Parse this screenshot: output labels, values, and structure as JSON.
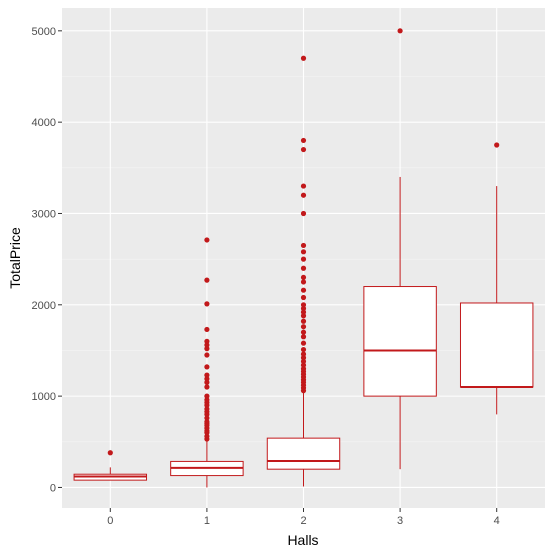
{
  "chart_data": {
    "type": "boxplot",
    "xlabel": "Halls",
    "ylabel": "TotalPrice",
    "ylim": [
      -225,
      5250
    ],
    "yticks": [
      0,
      1000,
      2000,
      3000,
      4000,
      5000
    ],
    "ytick_labels": [
      "0",
      "1000",
      "2000",
      "3000",
      "4000",
      "5000"
    ],
    "categories": [
      "0",
      "1",
      "2",
      "3",
      "4"
    ],
    "boxes": [
      {
        "category": "0",
        "q1": 80,
        "median": 120,
        "q3": 145,
        "whisker_low": 80,
        "whisker_high": 220
      },
      {
        "category": "1",
        "q1": 130,
        "median": 215,
        "q3": 285,
        "whisker_low": 0,
        "whisker_high": 520
      },
      {
        "category": "2",
        "q1": 200,
        "median": 290,
        "q3": 540,
        "whisker_low": 10,
        "whisker_high": 1050
      },
      {
        "category": "3",
        "q1": 1000,
        "median": 1500,
        "q3": 2200,
        "whisker_low": 200,
        "whisker_high": 3400
      },
      {
        "category": "4",
        "q1": 1100,
        "median": 1100,
        "q3": 2020,
        "whisker_low": 800,
        "whisker_high": 3300
      }
    ],
    "outliers": [
      {
        "category": "0",
        "values": [
          380
        ]
      },
      {
        "category": "1",
        "values": [
          530,
          560,
          600,
          620,
          650,
          680,
          700,
          720,
          760,
          800,
          830,
          860,
          900,
          930,
          960,
          1000,
          1100,
          1150,
          1190,
          1230,
          1320,
          1450,
          1520,
          1560,
          1600,
          1730,
          2010,
          2270,
          2710
        ]
      },
      {
        "category": "2",
        "values": [
          1060,
          1090,
          1120,
          1150,
          1180,
          1210,
          1240,
          1270,
          1300,
          1340,
          1380,
          1420,
          1460,
          1510,
          1580,
          1650,
          1700,
          1760,
          1820,
          1880,
          1920,
          1960,
          2000,
          2080,
          2160,
          2250,
          2300,
          2400,
          2500,
          2580,
          2650,
          3000,
          3200,
          3300,
          3700,
          3800,
          4700
        ]
      },
      {
        "category": "3",
        "values": [
          5000
        ]
      },
      {
        "category": "4",
        "values": [
          3750
        ]
      }
    ],
    "grid": true,
    "legend": "none",
    "colors": {
      "box_stroke": "#c2191b",
      "outlier": "#c2191b",
      "panel_bg": "#ebebeb",
      "grid_major": "#ffffff",
      "box_fill": "#ffffff"
    }
  }
}
